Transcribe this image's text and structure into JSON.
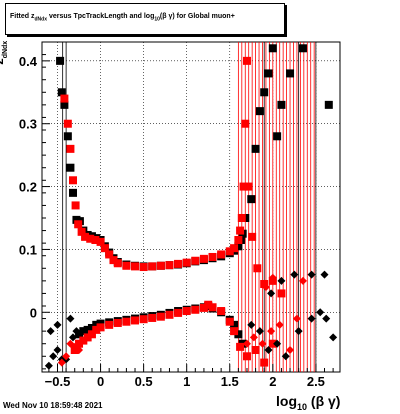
{
  "title": {
    "pre": "Fitted  z",
    "sub1": "dNdx",
    "mid": "  versus TpcTrackLength and log",
    "sub2": "10",
    "post": "(β  γ) for Global muon+"
  },
  "footer_date": "Wed Nov 10 18:59:48 2021",
  "x_axis_title": {
    "main": "log",
    "sub": "10",
    "tail": "(β γ)"
  },
  "y_axis_title": {
    "main": "z",
    "sub": "dNdx"
  },
  "colors": {
    "black_series": "#000000",
    "red_series": "#ff0000",
    "grid": "#000000",
    "background": "#ffffff"
  },
  "chart_data": {
    "type": "scatter",
    "title": "Fitted  zdNdx  versus TpcTrackLength and log10(β  γ) for Global muon+",
    "xlabel": "log10(β γ)",
    "ylabel": "zdNdx",
    "xlim": [
      -0.68,
      2.78
    ],
    "ylim": [
      -0.095,
      0.43
    ],
    "x_ticks": [
      -0.5,
      0,
      0.5,
      1,
      1.5,
      2,
      2.5
    ],
    "x_tick_labels": [
      "−0.5",
      "0",
      "0.5",
      "1",
      "1.5",
      "2",
      "2.5"
    ],
    "y_ticks": [
      0,
      0.1,
      0.2,
      0.3,
      0.4
    ],
    "y_tick_labels": [
      "0",
      "0.1",
      "0.2",
      "0.3",
      "0.4"
    ],
    "grid": true,
    "series": [
      {
        "marker": "square",
        "color": "#000000",
        "points": [
          [
            -0.47,
            0.4
          ],
          [
            -0.45,
            0.35
          ],
          [
            -0.42,
            0.33
          ],
          [
            -0.38,
            0.28
          ],
          [
            -0.35,
            0.23
          ],
          [
            -0.32,
            0.19
          ],
          [
            -0.28,
            0.147
          ],
          [
            -0.24,
            0.145
          ],
          [
            -0.2,
            0.13
          ],
          [
            -0.15,
            0.123
          ],
          [
            -0.1,
            0.121
          ],
          [
            -0.05,
            0.118
          ],
          [
            0.0,
            0.115
          ],
          [
            0.05,
            0.105
          ],
          [
            0.1,
            0.095
          ],
          [
            0.15,
            0.086
          ],
          [
            0.2,
            0.08
          ],
          [
            0.3,
            0.076
          ],
          [
            0.4,
            0.074
          ],
          [
            0.5,
            0.073
          ],
          [
            0.6,
            0.073
          ],
          [
            0.7,
            0.074
          ],
          [
            0.8,
            0.075
          ],
          [
            0.9,
            0.076
          ],
          [
            1.0,
            0.078
          ],
          [
            1.1,
            0.081
          ],
          [
            1.2,
            0.083
          ],
          [
            1.3,
            0.086
          ],
          [
            1.4,
            0.089
          ],
          [
            1.5,
            0.094
          ],
          [
            1.55,
            0.098
          ],
          [
            1.6,
            0.105
          ],
          [
            1.63,
            0.115
          ],
          [
            1.65,
            0.125
          ],
          [
            1.68,
            0.15
          ],
          [
            1.75,
            0.18
          ],
          [
            1.8,
            0.26
          ],
          [
            1.85,
            0.32
          ],
          [
            1.9,
            0.35
          ],
          [
            1.95,
            0.38
          ],
          [
            2.0,
            0.42
          ],
          [
            2.05,
            0.28
          ],
          [
            2.1,
            0.33
          ],
          [
            2.2,
            0.38
          ],
          [
            2.35,
            0.42
          ],
          [
            2.65,
            0.33
          ],
          [
            -0.25,
            -0.035
          ],
          [
            -0.2,
            -0.03
          ],
          [
            -0.15,
            -0.028
          ],
          [
            -0.1,
            -0.025
          ],
          [
            -0.05,
            -0.02
          ],
          [
            0.0,
            -0.018
          ],
          [
            0.1,
            -0.016
          ],
          [
            0.2,
            -0.014
          ],
          [
            0.3,
            -0.012
          ],
          [
            0.4,
            -0.01
          ],
          [
            0.5,
            -0.008
          ],
          [
            0.6,
            -0.006
          ],
          [
            0.7,
            -0.004
          ],
          [
            0.8,
            -0.001
          ],
          [
            0.9,
            0.002
          ],
          [
            1.0,
            0.004
          ],
          [
            1.1,
            0.006
          ],
          [
            1.2,
            0.008
          ],
          [
            1.25,
            0.01
          ],
          [
            1.3,
            0.006
          ],
          [
            1.4,
            0.0
          ],
          [
            1.5,
            -0.012
          ],
          [
            1.55,
            -0.02
          ],
          [
            1.6,
            -0.035
          ],
          [
            1.65,
            -0.05
          ]
        ]
      },
      {
        "marker": "square",
        "color": "#ff0000",
        "points": [
          [
            -0.42,
            0.34
          ],
          [
            -0.38,
            0.3
          ],
          [
            -0.35,
            0.26
          ],
          [
            -0.32,
            0.21
          ],
          [
            -0.29,
            0.17
          ],
          [
            -0.26,
            0.14
          ],
          [
            -0.22,
            0.128
          ],
          [
            -0.18,
            0.12
          ],
          [
            -0.12,
            0.117
          ],
          [
            -0.06,
            0.115
          ],
          [
            0.0,
            0.112
          ],
          [
            0.05,
            0.102
          ],
          [
            0.1,
            0.092
          ],
          [
            0.15,
            0.083
          ],
          [
            0.2,
            0.078
          ],
          [
            0.3,
            0.074
          ],
          [
            0.4,
            0.073
          ],
          [
            0.5,
            0.072
          ],
          [
            0.6,
            0.073
          ],
          [
            0.7,
            0.074
          ],
          [
            0.8,
            0.075
          ],
          [
            0.9,
            0.077
          ],
          [
            1.0,
            0.079
          ],
          [
            1.1,
            0.082
          ],
          [
            1.2,
            0.085
          ],
          [
            1.3,
            0.088
          ],
          [
            1.4,
            0.092
          ],
          [
            1.5,
            0.097
          ],
          [
            1.55,
            0.102
          ],
          [
            1.6,
            0.115
          ],
          [
            1.62,
            0.13
          ],
          [
            1.64,
            0.15
          ],
          [
            1.66,
            0.2
          ],
          [
            1.68,
            0.3
          ],
          [
            1.7,
            0.4
          ],
          [
            1.72,
            0.2
          ],
          [
            1.76,
            0.12
          ],
          [
            1.82,
            0.07
          ],
          [
            1.9,
            0.045
          ],
          [
            2.0,
            0.05
          ],
          [
            2.1,
            0.03
          ],
          [
            -0.3,
            -0.06
          ],
          [
            -0.25,
            -0.05
          ],
          [
            -0.2,
            -0.045
          ],
          [
            -0.15,
            -0.04
          ],
          [
            -0.1,
            -0.035
          ],
          [
            -0.05,
            -0.028
          ],
          [
            0.0,
            -0.024
          ],
          [
            0.1,
            -0.02
          ],
          [
            0.2,
            -0.017
          ],
          [
            0.3,
            -0.015
          ],
          [
            0.4,
            -0.013
          ],
          [
            0.5,
            -0.011
          ],
          [
            0.6,
            -0.009
          ],
          [
            0.7,
            -0.007
          ],
          [
            0.8,
            -0.004
          ],
          [
            0.9,
            -0.001
          ],
          [
            1.0,
            0.002
          ],
          [
            1.1,
            0.004
          ],
          [
            1.2,
            0.007
          ],
          [
            1.25,
            0.012
          ],
          [
            1.3,
            0.008
          ],
          [
            1.4,
            0.002
          ],
          [
            1.5,
            -0.015
          ],
          [
            1.55,
            -0.03
          ],
          [
            1.62,
            -0.055
          ],
          [
            1.7,
            -0.07
          ],
          [
            1.8,
            -0.06
          ],
          [
            1.9,
            -0.08
          ],
          [
            2.0,
            -0.05
          ]
        ]
      },
      {
        "marker": "diamond",
        "color": "#000000",
        "points": [
          [
            -0.6,
            -0.085
          ],
          [
            -0.55,
            -0.07
          ],
          [
            -0.5,
            -0.06
          ],
          [
            -0.45,
            -0.075
          ],
          [
            -0.4,
            -0.075
          ],
          [
            -0.35,
            -0.01
          ],
          [
            -0.32,
            -0.04
          ],
          [
            -0.28,
            -0.03
          ],
          [
            -0.5,
            -0.02
          ],
          [
            -0.58,
            -0.03
          ],
          [
            1.75,
            -0.02
          ],
          [
            1.85,
            -0.03
          ],
          [
            1.95,
            -0.06
          ],
          [
            2.05,
            -0.05
          ],
          [
            2.15,
            -0.07
          ],
          [
            2.3,
            -0.03
          ],
          [
            2.45,
            -0.01
          ],
          [
            2.55,
            0.0
          ],
          [
            2.62,
            -0.01
          ],
          [
            2.7,
            -0.04
          ],
          [
            2.6,
            0.06
          ],
          [
            2.45,
            0.06
          ],
          [
            2.25,
            0.06
          ],
          [
            2.1,
            0.05
          ],
          [
            1.98,
            0.03
          ]
        ]
      },
      {
        "marker": "diamond",
        "color": "#ff0000",
        "points": [
          [
            -0.45,
            -0.08
          ],
          [
            -0.4,
            -0.07
          ],
          [
            -0.35,
            -0.05
          ],
          [
            -0.3,
            -0.055
          ],
          [
            -0.25,
            -0.06
          ],
          [
            1.7,
            -0.05
          ],
          [
            1.78,
            -0.04
          ],
          [
            1.88,
            -0.05
          ],
          [
            1.98,
            -0.03
          ],
          [
            2.08,
            -0.02
          ],
          [
            2.2,
            -0.06
          ],
          [
            2.28,
            -0.01
          ],
          [
            2.35,
            0.05
          ],
          [
            2.0,
            0.055
          ],
          [
            1.92,
            0.04
          ]
        ]
      }
    ],
    "error_bar_columns_x": [
      1.6,
      1.64,
      1.68,
      1.72,
      1.76,
      1.8,
      1.84,
      1.88,
      1.92,
      1.96,
      2.0,
      2.04,
      2.08,
      2.12,
      2.16,
      2.2,
      2.24,
      2.28,
      2.32,
      2.36,
      2.4,
      2.44,
      2.48
    ],
    "error_bar_columns_black_x": [
      -0.44,
      -0.4,
      1.9,
      2.3,
      2.5
    ]
  }
}
